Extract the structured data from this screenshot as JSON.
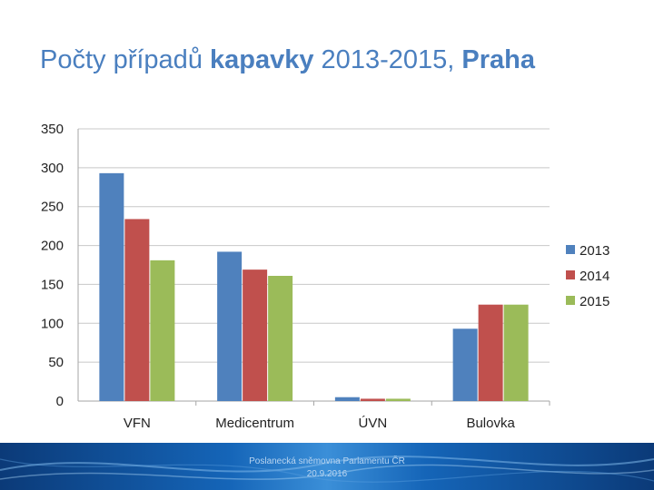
{
  "slide": {
    "title_normal1": "Počty případů ",
    "title_bold1": "kapavky",
    "title_normal2": " 2013-2015, ",
    "title_bold2": "Praha",
    "footer_line1": "Poslanecká sněmovna Parlamentu ČR",
    "footer_line2": "20.9.2016"
  },
  "colors": {
    "series_2013": "#4f81bd",
    "series_2014": "#c0504d",
    "series_2015": "#9bbb59"
  },
  "chart_data": {
    "type": "bar",
    "title": "",
    "xlabel": "",
    "ylabel": "",
    "categories": [
      "VFN",
      "Medicentrum",
      "ÚVN",
      "Bulovka"
    ],
    "series": [
      {
        "name": "2013",
        "values": [
          293,
          192,
          5,
          93
        ]
      },
      {
        "name": "2014",
        "values": [
          234,
          169,
          3,
          124
        ]
      },
      {
        "name": "2015",
        "values": [
          181,
          161,
          3,
          124
        ]
      }
    ],
    "ylim": [
      0,
      350
    ],
    "yticks": [
      0,
      50,
      100,
      150,
      200,
      250,
      300,
      350
    ],
    "ytick_labels": [
      "0",
      "50",
      "100",
      "150",
      "200",
      "250",
      "300",
      "350"
    ],
    "grid": true,
    "legend": "right"
  }
}
